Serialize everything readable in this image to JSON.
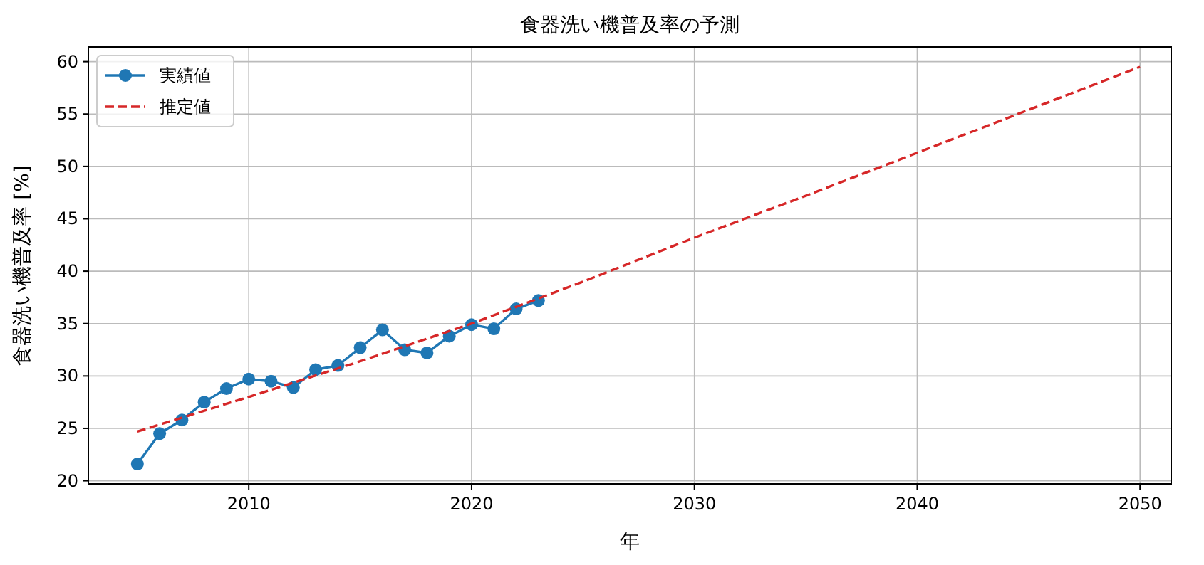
{
  "chart_data": {
    "type": "line",
    "title": "食器洗い機普及率の予測",
    "xlabel": "年",
    "ylabel": "食器洗い機普及率 [%]",
    "series": [
      {
        "name": "実績値",
        "color": "#1f77b4",
        "marker": "circle",
        "line_style": "solid",
        "x": [
          2005,
          2006,
          2007,
          2008,
          2009,
          2010,
          2011,
          2012,
          2013,
          2014,
          2015,
          2016,
          2017,
          2018,
          2019,
          2020,
          2021,
          2022,
          2023
        ],
        "values": [
          21.6,
          24.5,
          25.8,
          27.5,
          28.8,
          29.7,
          29.5,
          28.9,
          30.6,
          31.0,
          32.7,
          34.4,
          32.5,
          32.2,
          33.8,
          34.9,
          34.5,
          36.4,
          37.2
        ]
      },
      {
        "name": "推定値",
        "color": "#d62728",
        "marker": "none",
        "line_style": "dashed",
        "x": [
          2005,
          2010,
          2015,
          2020,
          2025,
          2030,
          2035,
          2040,
          2045,
          2050
        ],
        "values": [
          24.7,
          28.0,
          31.4,
          35.0,
          39.0,
          43.2,
          47.2,
          51.3,
          55.4,
          59.5
        ]
      }
    ],
    "xlim": [
      2002.8,
      2051.4
    ],
    "xticks": [
      2010,
      2020,
      2030,
      2040,
      2050
    ],
    "ylim": [
      19.7,
      61.4
    ],
    "yticks": [
      20,
      25,
      30,
      35,
      40,
      45,
      50,
      55,
      60
    ],
    "grid": true,
    "legend": "top left"
  }
}
